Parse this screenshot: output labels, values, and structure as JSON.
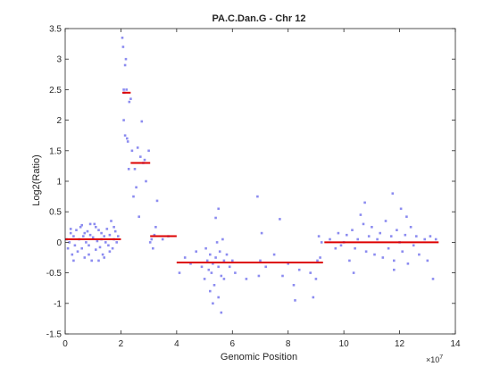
{
  "chart_data": {
    "type": "scatter",
    "title": "PA.C.Dan.G - Chr 12",
    "xlabel": "Genomic Position",
    "ylabel": "Log2(Ratio)",
    "x_multiplier_label": "×10",
    "x_multiplier_exponent": "7",
    "xlim": [
      0,
      14
    ],
    "ylim": [
      -1.5,
      3.5
    ],
    "x_ticks": [
      0,
      2,
      4,
      6,
      8,
      10,
      12,
      14
    ],
    "x_tick_labels": [
      "0",
      "2",
      "4",
      "6",
      "8",
      "10",
      "12",
      "14"
    ],
    "y_ticks": [
      -1.5,
      -1,
      -0.5,
      0,
      0.5,
      1,
      1.5,
      2,
      2.5,
      3,
      3.5
    ],
    "y_tick_labels": [
      "-1.5",
      "-1",
      "-0.5",
      "0",
      "0.5",
      "1",
      "1.5",
      "2",
      "2.5",
      "3",
      "3.5"
    ],
    "grid": false,
    "point_color": "#8c8cf0",
    "segment_color": "#dd0000",
    "points": [
      [
        0.05,
        0.05
      ],
      [
        0.1,
        -0.1
      ],
      [
        0.15,
        0.0
      ],
      [
        0.2,
        0.15
      ],
      [
        0.25,
        -0.2
      ],
      [
        0.3,
        0.1
      ],
      [
        0.35,
        -0.05
      ],
      [
        0.4,
        0.2
      ],
      [
        0.45,
        -0.15
      ],
      [
        0.5,
        0.05
      ],
      [
        0.55,
        0.25
      ],
      [
        0.6,
        -0.1
      ],
      [
        0.65,
        0.1
      ],
      [
        0.7,
        -0.25
      ],
      [
        0.75,
        0.0
      ],
      [
        0.8,
        0.18
      ],
      [
        0.85,
        -0.05
      ],
      [
        0.9,
        0.12
      ],
      [
        0.95,
        -0.3
      ],
      [
        1.0,
        0.08
      ],
      [
        1.05,
        0.3
      ],
      [
        1.1,
        -0.12
      ],
      [
        1.15,
        0.02
      ],
      [
        1.2,
        0.2
      ],
      [
        1.25,
        -0.08
      ],
      [
        1.3,
        0.15
      ],
      [
        1.35,
        -0.2
      ],
      [
        1.4,
        0.1
      ],
      [
        1.45,
        0.0
      ],
      [
        1.5,
        0.22
      ],
      [
        1.55,
        -0.05
      ],
      [
        1.6,
        0.12
      ],
      [
        1.65,
        0.35
      ],
      [
        1.7,
        -0.1
      ],
      [
        1.75,
        0.05
      ],
      [
        1.8,
        0.18
      ],
      [
        1.85,
        0.0
      ],
      [
        1.9,
        0.1
      ],
      [
        0.6,
        0.28
      ],
      [
        1.2,
        -0.3
      ],
      [
        0.9,
        0.3
      ],
      [
        1.4,
        -0.25
      ],
      [
        0.3,
        -0.3
      ],
      [
        1.1,
        0.25
      ],
      [
        0.7,
        0.15
      ],
      [
        1.6,
        -0.15
      ],
      [
        0.2,
        0.22
      ],
      [
        1.3,
        0.05
      ],
      [
        0.85,
        -0.2
      ],
      [
        1.75,
        0.25
      ],
      [
        2.05,
        3.35
      ],
      [
        2.08,
        3.2
      ],
      [
        2.1,
        2.5
      ],
      [
        2.12,
        2.45
      ],
      [
        2.15,
        2.9
      ],
      [
        2.18,
        3.0
      ],
      [
        2.2,
        2.5
      ],
      [
        2.22,
        1.7
      ],
      [
        2.25,
        1.65
      ],
      [
        2.28,
        1.2
      ],
      [
        2.1,
        2.0
      ],
      [
        2.15,
        1.75
      ],
      [
        2.3,
        2.3
      ],
      [
        2.35,
        2.35
      ],
      [
        2.4,
        1.5
      ],
      [
        2.5,
        1.2
      ],
      [
        2.6,
        1.55
      ],
      [
        2.7,
        1.4
      ],
      [
        2.8,
        1.3
      ],
      [
        2.9,
        1.0
      ],
      [
        3.0,
        1.5
      ],
      [
        2.55,
        0.9
      ],
      [
        2.45,
        0.75
      ],
      [
        2.75,
        1.98
      ],
      [
        2.65,
        0.42
      ],
      [
        2.85,
        1.35
      ],
      [
        3.05,
        0.0
      ],
      [
        3.1,
        0.05
      ],
      [
        3.15,
        -0.1
      ],
      [
        3.2,
        0.12
      ],
      [
        3.25,
        0.25
      ],
      [
        3.3,
        0.68
      ],
      [
        3.5,
        0.05
      ],
      [
        3.7,
        0.1
      ],
      [
        4.1,
        -0.5
      ],
      [
        4.3,
        -0.25
      ],
      [
        4.5,
        -0.35
      ],
      [
        4.7,
        -0.15
      ],
      [
        4.9,
        -0.4
      ],
      [
        5.0,
        -0.6
      ],
      [
        5.05,
        -0.1
      ],
      [
        5.1,
        -0.3
      ],
      [
        5.15,
        -0.45
      ],
      [
        5.2,
        -0.2
      ],
      [
        5.25,
        -0.5
      ],
      [
        5.3,
        -0.35
      ],
      [
        5.35,
        -0.7
      ],
      [
        5.4,
        -0.25
      ],
      [
        5.45,
        0.0
      ],
      [
        5.5,
        -0.4
      ],
      [
        5.55,
        -0.15
      ],
      [
        5.6,
        -0.55
      ],
      [
        5.65,
        0.05
      ],
      [
        5.7,
        -0.3
      ],
      [
        5.3,
        -1.0
      ],
      [
        5.5,
        -0.9
      ],
      [
        5.6,
        -1.15
      ],
      [
        5.4,
        0.4
      ],
      [
        5.5,
        0.55
      ],
      [
        5.2,
        -0.8
      ],
      [
        5.7,
        -0.6
      ],
      [
        5.8,
        -0.2
      ],
      [
        5.9,
        -0.4
      ],
      [
        6.0,
        -0.3
      ],
      [
        6.1,
        -0.5
      ],
      [
        6.5,
        -0.6
      ],
      [
        6.9,
        0.75
      ],
      [
        6.95,
        -0.55
      ],
      [
        7.0,
        -0.3
      ],
      [
        7.05,
        0.15
      ],
      [
        7.2,
        -0.4
      ],
      [
        7.5,
        -0.2
      ],
      [
        7.7,
        0.38
      ],
      [
        7.8,
        -0.55
      ],
      [
        8.0,
        -0.35
      ],
      [
        8.2,
        -0.7
      ],
      [
        8.25,
        -0.95
      ],
      [
        8.4,
        -0.45
      ],
      [
        8.8,
        -0.5
      ],
      [
        8.9,
        -0.9
      ],
      [
        9.0,
        -0.6
      ],
      [
        9.05,
        -0.3
      ],
      [
        9.1,
        0.1
      ],
      [
        9.15,
        -0.25
      ],
      [
        9.2,
        0.0
      ],
      [
        9.5,
        0.05
      ],
      [
        9.7,
        -0.1
      ],
      [
        9.8,
        0.15
      ],
      [
        9.9,
        -0.05
      ],
      [
        10.0,
        0.0
      ],
      [
        10.1,
        0.12
      ],
      [
        10.2,
        -0.3
      ],
      [
        10.3,
        0.2
      ],
      [
        10.4,
        -0.1
      ],
      [
        10.5,
        0.05
      ],
      [
        10.6,
        0.45
      ],
      [
        10.7,
        0.3
      ],
      [
        10.75,
        0.65
      ],
      [
        10.8,
        -0.15
      ],
      [
        10.9,
        0.1
      ],
      [
        11.0,
        0.25
      ],
      [
        11.1,
        -0.2
      ],
      [
        11.2,
        0.05
      ],
      [
        11.3,
        0.15
      ],
      [
        11.4,
        -0.25
      ],
      [
        11.5,
        0.35
      ],
      [
        11.6,
        -0.1
      ],
      [
        11.7,
        0.1
      ],
      [
        11.75,
        0.8
      ],
      [
        11.8,
        -0.3
      ],
      [
        11.9,
        0.2
      ],
      [
        12.0,
        0.0
      ],
      [
        12.05,
        0.55
      ],
      [
        12.1,
        -0.15
      ],
      [
        12.2,
        0.12
      ],
      [
        12.3,
        -0.35
      ],
      [
        12.4,
        0.25
      ],
      [
        12.5,
        -0.05
      ],
      [
        12.6,
        0.1
      ],
      [
        12.7,
        -0.2
      ],
      [
        12.9,
        0.05
      ],
      [
        13.0,
        -0.3
      ],
      [
        13.1,
        0.1
      ],
      [
        13.2,
        -0.6
      ],
      [
        13.3,
        0.05
      ],
      [
        11.8,
        -0.45
      ],
      [
        12.25,
        0.42
      ],
      [
        10.35,
        -0.5
      ]
    ],
    "segments": [
      {
        "x": [
          0.0,
          2.0
        ],
        "y": 0.05
      },
      {
        "x": [
          2.05,
          2.35
        ],
        "y": 2.45
      },
      {
        "x": [
          2.35,
          3.05
        ],
        "y": 1.3
      },
      {
        "x": [
          3.05,
          4.0
        ],
        "y": 0.1
      },
      {
        "x": [
          4.0,
          9.25
        ],
        "y": -0.33
      },
      {
        "x": [
          9.3,
          13.4
        ],
        "y": 0.0
      }
    ]
  }
}
